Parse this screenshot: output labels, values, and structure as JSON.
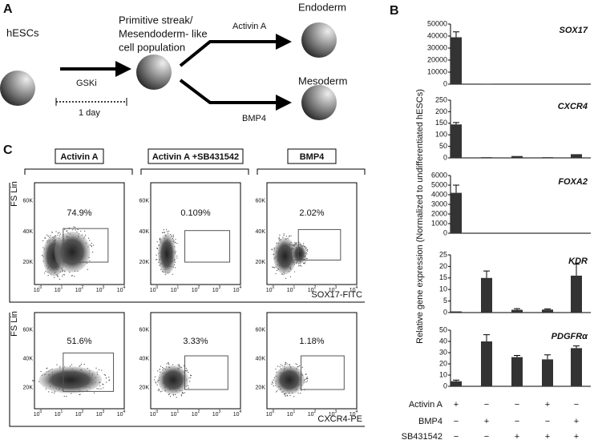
{
  "panel_labels": [
    "A",
    "B",
    "C"
  ],
  "diagram": {
    "start": "hESCs",
    "intermediate": [
      "Primitive streak/",
      "Mesendoderm- like",
      "cell population"
    ],
    "treatment": "GSKi",
    "duration": "1 day",
    "branches": [
      {
        "factor": "Activin A",
        "result": "Endoderm"
      },
      {
        "factor": "BMP4",
        "result": "Mesoderm"
      }
    ]
  },
  "flow": {
    "conditions": [
      "Activin A",
      "Activin A +SB431542",
      "BMP4"
    ],
    "y_label": "FS Lin",
    "y_ticks": [
      "20K",
      "40K",
      "60K"
    ],
    "x_tick_base": "10",
    "x_tick_exponents": [
      "0",
      "1",
      "2",
      "3",
      "4"
    ],
    "rows": [
      {
        "marker": "SOX17-FITC",
        "percentages": [
          "74.9%",
          "0.109%",
          "2.02%"
        ]
      },
      {
        "marker": "CXCR4-PE",
        "percentages": [
          "51.6%",
          "3.33%",
          "1.18%"
        ]
      }
    ]
  },
  "gene_axis_label": "Relative gene expression (Normalized to undifferentiated hESCs)",
  "chart_data": [
    {
      "type": "bar",
      "title": "SOX17",
      "color": "#333333",
      "values": [
        39000,
        200,
        0,
        0,
        0
      ],
      "errors": [
        4500,
        null,
        null,
        null,
        null
      ],
      "ylim": [
        0,
        50000
      ],
      "yticks": [
        0,
        10000,
        20000,
        30000,
        40000,
        50000
      ]
    },
    {
      "type": "bar",
      "title": "CXCR4",
      "color": "#333333",
      "values": [
        145,
        3,
        8,
        3,
        16
      ],
      "errors": [
        8,
        null,
        null,
        null,
        null
      ],
      "ylim": [
        0,
        250
      ],
      "yticks": [
        0,
        50,
        100,
        150,
        200,
        250
      ]
    },
    {
      "type": "bar",
      "title": "FOXA2",
      "color": "#333333",
      "values": [
        4200,
        0,
        0,
        0,
        0
      ],
      "errors": [
        800,
        null,
        null,
        null,
        null
      ],
      "ylim": [
        0,
        6000
      ],
      "yticks": [
        0,
        1000,
        2000,
        3000,
        4000,
        5000,
        6000
      ]
    },
    {
      "type": "bar",
      "title": "KDR",
      "color": "#333333",
      "values": [
        0.5,
        15,
        1.2,
        1.3,
        16
      ],
      "errors": [
        null,
        3,
        0.5,
        0.3,
        5
      ],
      "ylim": [
        0,
        25
      ],
      "yticks": [
        0,
        5,
        10,
        15,
        20,
        25
      ]
    },
    {
      "type": "bar",
      "title": "PDGFRα",
      "color": "#333333",
      "values": [
        4.5,
        40,
        26,
        24,
        34
      ],
      "errors": [
        1,
        6,
        1.5,
        4,
        2
      ],
      "ylim": [
        0,
        50
      ],
      "yticks": [
        0,
        10,
        20,
        30,
        40,
        50
      ]
    }
  ],
  "conditions": [
    {
      "label": "Activin A",
      "marks": [
        "+",
        "−",
        "−",
        "+",
        "−"
      ]
    },
    {
      "label": "BMP4",
      "marks": [
        "−",
        "+",
        "−",
        "−",
        "+"
      ]
    },
    {
      "label": "SB431542",
      "marks": [
        "−",
        "−",
        "+",
        "+",
        "+"
      ]
    }
  ]
}
